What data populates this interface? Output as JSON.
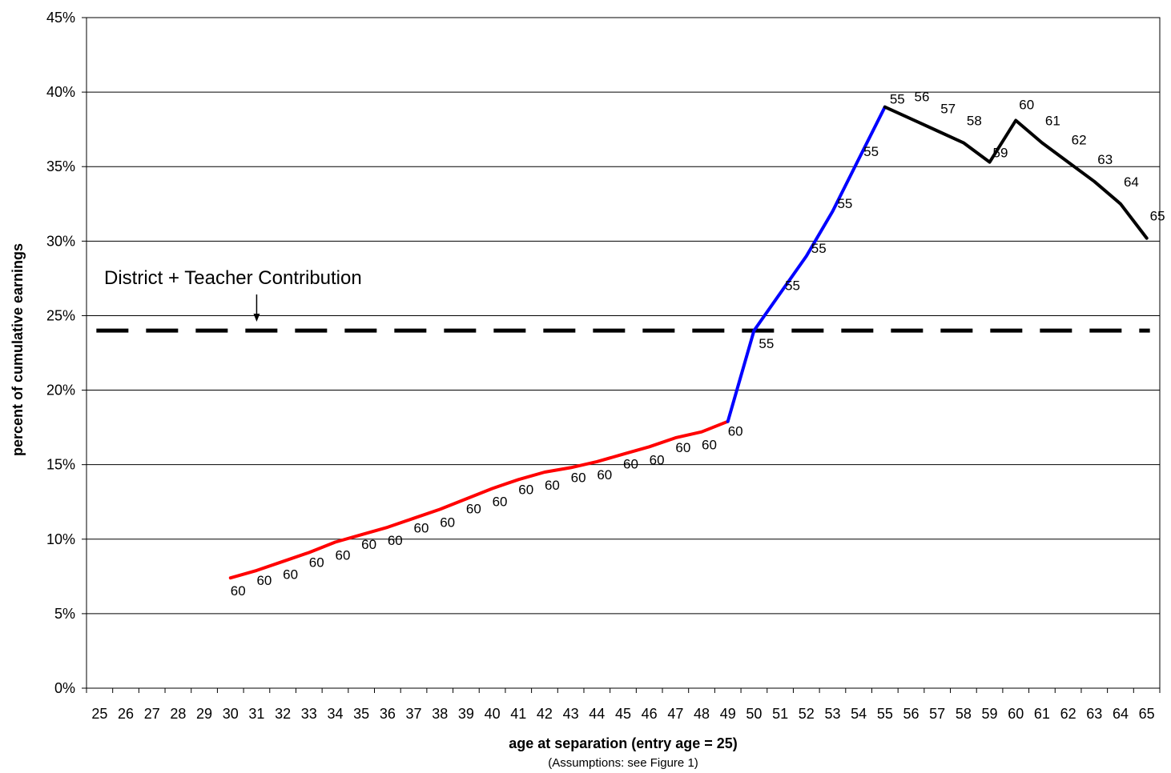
{
  "chart_data": {
    "type": "line",
    "xlabel": "age at separation (entry age = 25)",
    "xlabel_note": "(Assumptions:  see Figure 1)",
    "ylabel": "percent of cumulative earnings",
    "ylim": [
      0,
      45
    ],
    "y_ticks": [
      0,
      5,
      10,
      15,
      20,
      25,
      30,
      35,
      40,
      45
    ],
    "y_tick_suffix": "%",
    "x_ticks": [
      25,
      26,
      27,
      28,
      29,
      30,
      31,
      32,
      33,
      34,
      35,
      36,
      37,
      38,
      39,
      40,
      41,
      42,
      43,
      44,
      45,
      46,
      47,
      48,
      49,
      50,
      51,
      52,
      53,
      54,
      55,
      56,
      57,
      58,
      59,
      60,
      61,
      62,
      63,
      64,
      65
    ],
    "grid": "horizontal",
    "annotation": {
      "text": "District + Teacher Contribution",
      "arrow_x": 31,
      "reference_value": 24
    },
    "reference_line": {
      "value": 24,
      "style": "dashed",
      "color": "#000000"
    },
    "series": [
      {
        "color": "#ff0000",
        "x": [
          30,
          31,
          32,
          33,
          34,
          35,
          36,
          37,
          38,
          39,
          40,
          41,
          42,
          43,
          44,
          45,
          46,
          47,
          48,
          49
        ],
        "y": [
          7.4,
          7.9,
          8.5,
          9.1,
          9.8,
          10.3,
          10.8,
          11.4,
          12.0,
          12.7,
          13.4,
          14.0,
          14.5,
          14.8,
          15.2,
          15.7,
          16.2,
          16.8,
          17.2,
          17.9
        ],
        "labels": [
          "60",
          "60",
          "60",
          "60",
          "60",
          "60",
          "60",
          "60",
          "60",
          "60",
          "60",
          "60",
          "60",
          "60",
          "60",
          "60",
          "60",
          "60",
          "60",
          "60"
        ]
      },
      {
        "color": "#0000ff",
        "x": [
          49,
          50,
          51,
          52,
          53,
          54,
          55
        ],
        "y": [
          17.9,
          24.0,
          26.5,
          29.0,
          32.0,
          35.5,
          39.0
        ],
        "labels": [
          "",
          "55",
          "55",
          "55",
          "55",
          "55",
          "55"
        ]
      },
      {
        "color": "#000000",
        "x": [
          55,
          56,
          57,
          58,
          59,
          60,
          61,
          62,
          63,
          64,
          65
        ],
        "y": [
          39.0,
          38.2,
          37.4,
          36.6,
          35.3,
          38.1,
          36.6,
          35.3,
          34.0,
          32.5,
          30.2
        ],
        "labels": [
          "",
          "56",
          "57",
          "58",
          "59",
          "60",
          "61",
          "62",
          "63",
          "64",
          "65"
        ]
      }
    ]
  }
}
